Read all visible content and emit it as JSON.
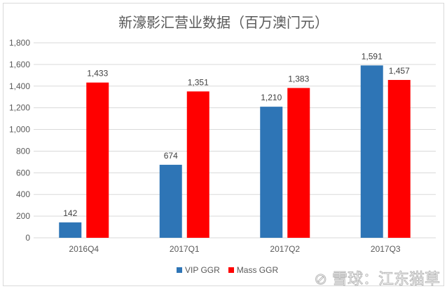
{
  "chart_data": {
    "type": "bar",
    "title": "新濠影汇营业数据（百万澳门元）",
    "categories": [
      "2016Q4",
      "2017Q1",
      "2017Q2",
      "2017Q3"
    ],
    "series": [
      {
        "name": "VIP GGR",
        "color": "#2e75b6",
        "values": [
          142,
          674,
          1210,
          1591
        ]
      },
      {
        "name": "Mass GGR",
        "color": "#ff0000",
        "values": [
          1433,
          1351,
          1383,
          1457
        ]
      }
    ],
    "ylim": [
      0,
      1800
    ],
    "yticks": [
      0,
      200,
      400,
      600,
      800,
      1000,
      1200,
      1400,
      1600,
      1800
    ],
    "grid": true,
    "legend": "bottom",
    "xlabel": "",
    "ylabel": ""
  },
  "watermark": "雪球：江东猫草"
}
